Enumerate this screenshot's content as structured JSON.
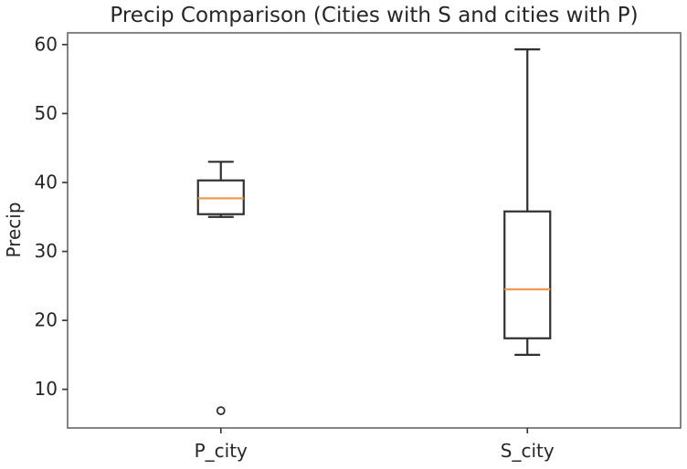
{
  "figure": {
    "title": "Precip Comparison (Cities with S and cities with P)",
    "y_axis_label": "Precip"
  },
  "chart_data": {
    "type": "boxplot",
    "title": "Precip Comparison (Cities with S and cities with P)",
    "xlabel": "",
    "ylabel": "Precip",
    "categories": [
      "P_city",
      "S_city"
    ],
    "series": [
      {
        "name": "P_city",
        "whisker_low": 35.0,
        "q1": 35.4,
        "median": 37.7,
        "q3": 40.3,
        "whisker_high": 43.0,
        "outliers": [
          6.9
        ]
      },
      {
        "name": "S_city",
        "whisker_low": 15.0,
        "q1": 17.4,
        "median": 24.5,
        "q3": 35.8,
        "whisker_high": 59.3,
        "outliers": []
      }
    ],
    "ylim": [
      4.4,
      61.7
    ],
    "yticks": [
      10,
      20,
      30,
      40,
      50,
      60
    ],
    "grid": false,
    "legend": null,
    "colors": {
      "box_line": "#2f2f2f",
      "median_line": "#ef9c51",
      "spine": "#6f6f6f",
      "tick": "#3a3a3a",
      "text": "#262626",
      "background": "#ffffff"
    }
  }
}
